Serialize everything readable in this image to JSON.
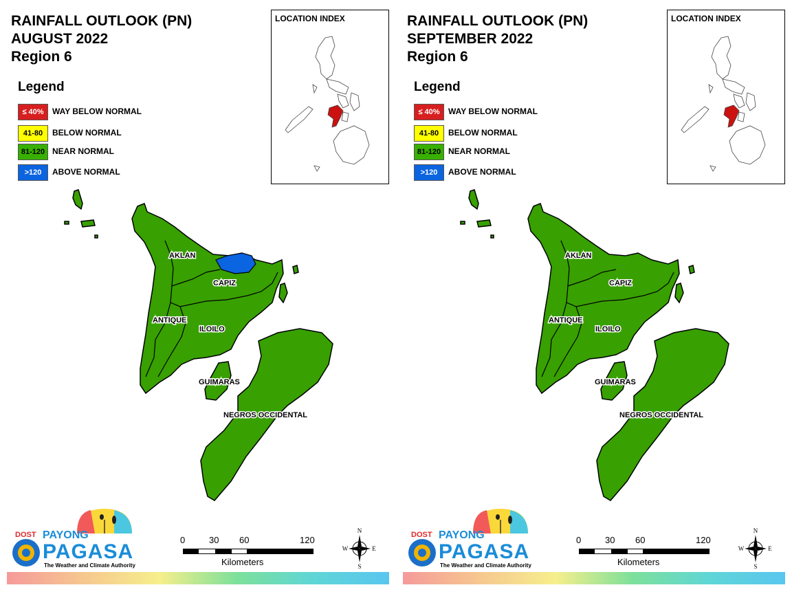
{
  "panels": [
    {
      "title_line1": "RAINFALL OUTLOOK (PN)",
      "title_line2": "AUGUST 2022",
      "title_line3": "Region 6",
      "legend_title": "Legend",
      "legend": [
        {
          "code": "≤ 40%",
          "label": "WAY BELOW NORMAL",
          "color": "#d71f1f",
          "text_color": "#ffffff"
        },
        {
          "code": "41-80",
          "label": "BELOW NORMAL",
          "color": "#ffff00",
          "text_color": "#000000"
        },
        {
          "code": "81-120",
          "label": "NEAR NORMAL",
          "color": "#38b000",
          "text_color": "#000000"
        },
        {
          "code": ">120",
          "label": "ABOVE NORMAL",
          "color": "#0b64e0",
          "text_color": "#ffffff"
        }
      ],
      "location_index_title": "LOCATION INDEX",
      "provinces": [
        {
          "name": "AKLAN",
          "category": "NEAR NORMAL",
          "extra": "ABOVE NORMAL (coastal area)"
        },
        {
          "name": "CAPIZ",
          "category": "NEAR NORMAL"
        },
        {
          "name": "ANTIQUE",
          "category": "NEAR NORMAL"
        },
        {
          "name": "ILOILO",
          "category": "NEAR NORMAL"
        },
        {
          "name": "GUIMARAS",
          "category": "NEAR NORMAL"
        },
        {
          "name": "NEGROS OCCIDENTAL",
          "category": "NEAR NORMAL"
        }
      ],
      "scale": {
        "ticks": [
          "0",
          "30",
          "60",
          "120"
        ],
        "unit": "Kilometers"
      },
      "compass": {
        "n": "N",
        "s": "S",
        "e": "E",
        "w": "W"
      },
      "logo": {
        "dost": "DOST",
        "payong": "PAYONG",
        "pagasa": "PAGASA",
        "tagline": "The Weather and Climate Authority"
      }
    },
    {
      "title_line1": "RAINFALL OUTLOOK (PN)",
      "title_line2": "SEPTEMBER 2022",
      "title_line3": "Region 6",
      "legend_title": "Legend",
      "legend": [
        {
          "code": "≤ 40%",
          "label": "WAY BELOW NORMAL",
          "color": "#d71f1f",
          "text_color": "#ffffff"
        },
        {
          "code": "41-80",
          "label": "BELOW NORMAL",
          "color": "#ffff00",
          "text_color": "#000000"
        },
        {
          "code": "81-120",
          "label": "NEAR NORMAL",
          "color": "#38b000",
          "text_color": "#000000"
        },
        {
          "code": ">120",
          "label": "ABOVE NORMAL",
          "color": "#0b64e0",
          "text_color": "#ffffff"
        }
      ],
      "location_index_title": "LOCATION INDEX",
      "provinces": [
        {
          "name": "AKLAN",
          "category": "NEAR NORMAL"
        },
        {
          "name": "CAPIZ",
          "category": "NEAR NORMAL"
        },
        {
          "name": "ANTIQUE",
          "category": "NEAR NORMAL"
        },
        {
          "name": "ILOILO",
          "category": "NEAR NORMAL"
        },
        {
          "name": "GUIMARAS",
          "category": "NEAR NORMAL"
        },
        {
          "name": "NEGROS OCCIDENTAL",
          "category": "NEAR NORMAL"
        }
      ],
      "scale": {
        "ticks": [
          "0",
          "30",
          "60",
          "120"
        ],
        "unit": "Kilometers"
      },
      "compass": {
        "n": "N",
        "s": "S",
        "e": "E",
        "w": "W"
      },
      "logo": {
        "dost": "DOST",
        "payong": "PAYONG",
        "pagasa": "PAGASA",
        "tagline": "The Weather and Climate Authority"
      }
    }
  ],
  "colors": {
    "land_green": "#38a000",
    "outline": "#000000",
    "above_normal_blue": "#0b64e0",
    "highlight_red": "#cc1111"
  }
}
